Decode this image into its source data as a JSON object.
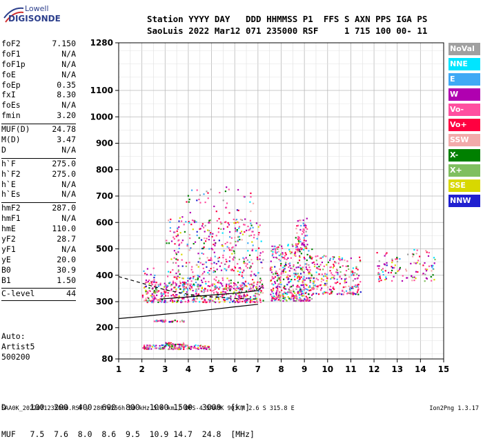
{
  "logo": {
    "top": "Lowell",
    "bottom": "DIGISONDE"
  },
  "header": {
    "line1": "Station YYYY DAY   DDD HHMMSS P1  FFS S AXN PPS IGA PS",
    "line2": "SaoLuis 2022 Mar12 071 235000 RSF     1 715 100 00- 11"
  },
  "params_a": [
    {
      "name": "foF2",
      "value": "7.150"
    },
    {
      "name": "foF1",
      "value": "N/A"
    },
    {
      "name": "foF1p",
      "value": "N/A"
    },
    {
      "name": "foE",
      "value": "N/A"
    },
    {
      "name": "foEp",
      "value": "0.35"
    },
    {
      "name": "fxI",
      "value": "8.30"
    },
    {
      "name": "foEs",
      "value": "N/A"
    },
    {
      "name": "fmin",
      "value": "3.20"
    }
  ],
  "params_b": [
    {
      "name": "MUF(D)",
      "value": "24.78"
    },
    {
      "name": "M(D)",
      "value": "3.47"
    },
    {
      "name": "D",
      "value": "N/A"
    }
  ],
  "params_c": [
    {
      "name": "h`F",
      "value": "275.0"
    },
    {
      "name": "h`F2",
      "value": "275.0"
    },
    {
      "name": "h`E",
      "value": "N/A"
    },
    {
      "name": "h`Es",
      "value": "N/A"
    }
  ],
  "params_d": [
    {
      "name": "hmF2",
      "value": "287.0"
    },
    {
      "name": "hmF1",
      "value": "N/A"
    },
    {
      "name": "hmE",
      "value": "110.0"
    },
    {
      "name": "yF2",
      "value": "28.7"
    },
    {
      "name": "yF1",
      "value": "N/A"
    },
    {
      "name": "yE",
      "value": "20.0"
    },
    {
      "name": "B0",
      "value": "30.9"
    },
    {
      "name": "B1",
      "value": "1.50"
    }
  ],
  "clevel": {
    "name": "C-level",
    "value": "44"
  },
  "auto": {
    "line1": "Auto:",
    "line2": "Artist5",
    "line3": "500200"
  },
  "legend": [
    {
      "label": "NoVal",
      "color": "#a0a0a0"
    },
    {
      "label": "NNE",
      "color": "#00e5ff"
    },
    {
      "label": "E",
      "color": "#3fa9f5"
    },
    {
      "label": "W",
      "color": "#b000b0"
    },
    {
      "label": "Vo-",
      "color": "#ff4fa0"
    },
    {
      "label": "Vo+",
      "color": "#ff0040"
    },
    {
      "label": "SSW",
      "color": "#f2aaaa"
    },
    {
      "label": "X-",
      "color": "#008000"
    },
    {
      "label": "X+",
      "color": "#7fbf5f"
    },
    {
      "label": "SSE",
      "color": "#d8d800"
    },
    {
      "label": "NNW",
      "color": "#2020d0"
    }
  ],
  "muf_table": {
    "d_label": "D",
    "d_values": [
      "100",
      "200",
      "400",
      "600",
      "800",
      "1000",
      "1500",
      "3000",
      "[km]"
    ],
    "muf_label": "MUF",
    "muf_values": [
      "7.5",
      "7.6",
      "8.0",
      "8.6",
      "9.5",
      "10.9",
      "14.7",
      "24.8",
      "[MHz]"
    ]
  },
  "footer": {
    "left": "SAA0K_2022071235000.RSF / 280fx256h 50 kHz 5.0 km / DPS-4 SAA0K 903 / 2.6 S 315.8 E",
    "right": "Ion2Png 1.3.17"
  },
  "chart_data": {
    "type": "scatter",
    "x_ticks": [
      1,
      2,
      3,
      4,
      5,
      6,
      7,
      8,
      9,
      10,
      11,
      12,
      13,
      14,
      15
    ],
    "y_ticks": [
      80,
      200,
      300,
      400,
      500,
      600,
      700,
      800,
      900,
      1000,
      1100,
      1280
    ],
    "xlim": [
      1,
      15
    ],
    "ylim": [
      80,
      1280
    ],
    "y_scale": "nonlinear (ionogram virtual height)",
    "grid": true,
    "clusters": [
      {
        "x0": 2.0,
        "x1": 2.6,
        "y0": 300,
        "y1": 430,
        "density": 70
      },
      {
        "x0": 2.4,
        "x1": 7.2,
        "y0": 300,
        "y1": 380,
        "density": 420
      },
      {
        "x0": 3.0,
        "x1": 7.2,
        "y0": 350,
        "y1": 620,
        "density": 380
      },
      {
        "x0": 3.5,
        "x1": 6.8,
        "y0": 420,
        "y1": 740,
        "density": 120
      },
      {
        "x0": 7.5,
        "x1": 9.3,
        "y0": 305,
        "y1": 520,
        "density": 420
      },
      {
        "x0": 8.6,
        "x1": 9.1,
        "y0": 500,
        "y1": 620,
        "density": 60
      },
      {
        "x0": 9.3,
        "x1": 11.4,
        "y0": 330,
        "y1": 480,
        "density": 220
      },
      {
        "x0": 12.1,
        "x1": 14.6,
        "y0": 380,
        "y1": 500,
        "density": 110
      },
      {
        "x0": 2.5,
        "x1": 3.8,
        "y0": 225,
        "y1": 232,
        "density": 40
      },
      {
        "x0": 2.0,
        "x1": 4.9,
        "y0": 120,
        "y1": 136,
        "density": 150
      },
      {
        "x0": 3.0,
        "x1": 3.8,
        "y0": 138,
        "y1": 145,
        "density": 30
      }
    ],
    "curves": [
      {
        "name": "o-trace",
        "style": "solid",
        "points": [
          [
            2.8,
            310
          ],
          [
            4.0,
            318
          ],
          [
            5.0,
            325
          ],
          [
            6.0,
            332
          ],
          [
            6.5,
            336
          ],
          [
            7.0,
            342
          ],
          [
            7.15,
            355
          ]
        ]
      },
      {
        "name": "x-trace",
        "style": "solid",
        "points": [
          [
            1.0,
            235
          ],
          [
            2.0,
            243
          ],
          [
            3.0,
            252
          ],
          [
            4.0,
            260
          ],
          [
            5.0,
            270
          ],
          [
            6.0,
            280
          ],
          [
            7.0,
            290
          ]
        ]
      },
      {
        "name": "profile",
        "style": "dashed",
        "points": [
          [
            1.0,
            395
          ],
          [
            2.0,
            370
          ],
          [
            3.0,
            345
          ],
          [
            4.0,
            328
          ],
          [
            5.0,
            318
          ],
          [
            6.0,
            312
          ],
          [
            7.0,
            310
          ]
        ]
      }
    ]
  }
}
